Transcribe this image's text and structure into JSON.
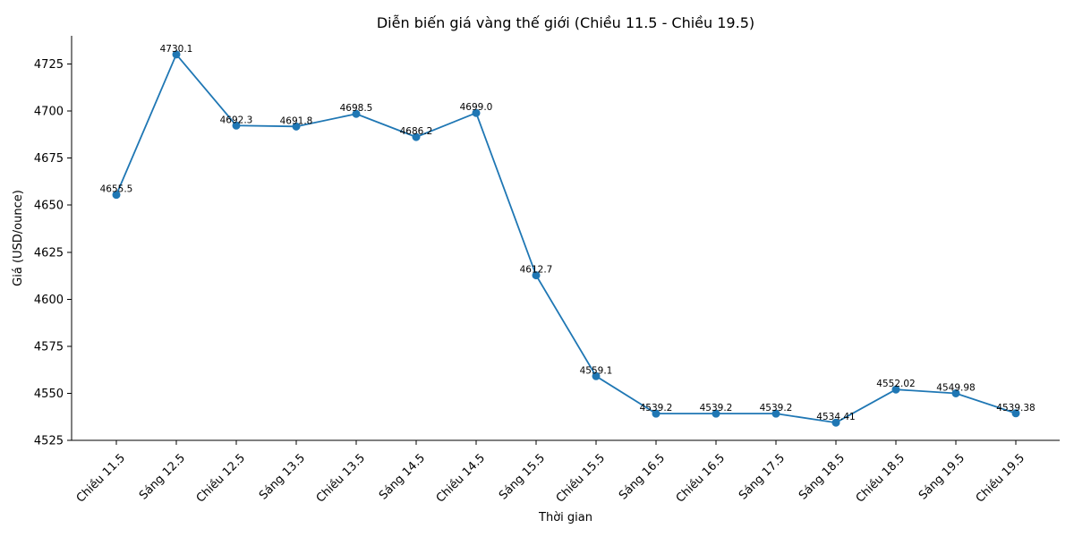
{
  "chart_data": {
    "type": "line",
    "title": "Diễn biến giá vàng thế giới (Chiều 11.5 - Chiều 19.5)",
    "xlabel": "Thời gian",
    "ylabel": "Giá (USD/ounce)",
    "categories": [
      "Chiều 11.5",
      "Sáng 12.5",
      "Chiều 12.5",
      "Sáng 13.5",
      "Chiều 13.5",
      "Sáng 14.5",
      "Chiều 14.5",
      "Sáng 15.5",
      "Chiều 15.5",
      "Sáng 16.5",
      "Chiều 16.5",
      "Sáng 17.5",
      "Sáng 18.5",
      "Chiều 18.5",
      "Sáng 19.5",
      "Chiều 19.5"
    ],
    "series": [
      {
        "values": [
          4655.5,
          4730.1,
          4692.3,
          4691.8,
          4698.5,
          4686.2,
          4699.0,
          4612.7,
          4559.1,
          4539.2,
          4539.2,
          4539.2,
          4534.41,
          4552.02,
          4549.98,
          4539.38
        ],
        "labels": [
          "4655.5",
          "4730.1",
          "4692.3",
          "4691.8",
          "4698.5",
          "4686.2",
          "4699.0",
          "4612.7",
          "4559.1",
          "4539.2",
          "4539.2",
          "4539.2",
          "4534.41",
          "4552.02",
          "4549.98",
          "4539.38"
        ]
      }
    ],
    "ylim": [
      4525,
      4740
    ],
    "yticks": [
      4525,
      4550,
      4575,
      4600,
      4625,
      4650,
      4675,
      4700,
      4725
    ],
    "grid": false,
    "color": "#1f77b4"
  }
}
